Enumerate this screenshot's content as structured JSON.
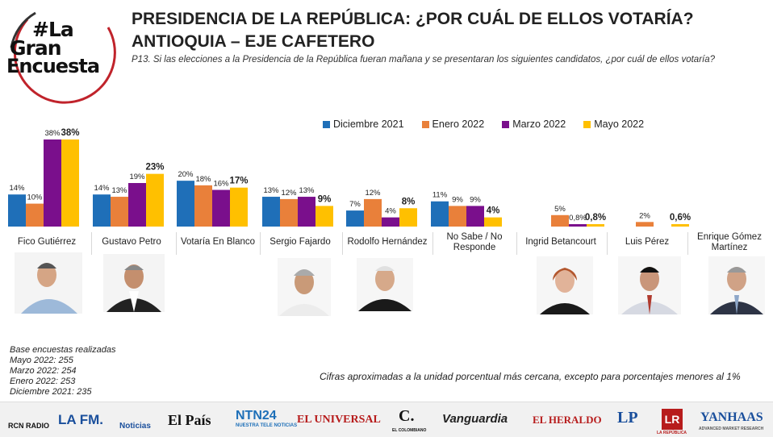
{
  "logo": {
    "line1": "#La",
    "line2": "Gran",
    "line3": "Encuesta"
  },
  "title_line1": "PRESIDENCIA DE LA REPÚBLICA: ¿POR CUÁL DE ELLOS VOTARÍA?",
  "title_line2": "ANTIOQUIA – EJE CAFETERO",
  "question": "P13. Si las elecciones a la Presidencia de la República fueran mañana y se presentaran los siguientes candidatos, ¿por cuál de ellos votaría?",
  "colors": {
    "dic": "#1F6FB8",
    "ene": "#E9803A",
    "mar": "#7A0F8C",
    "may": "#FFC000"
  },
  "chart_data": {
    "type": "bar",
    "categories": [
      "Fico Gutiérrez",
      "Gustavo Petro",
      "Votaría En Blanco",
      "Sergio Fajardo",
      "Rodolfo Hernández",
      "No Sabe / No Responde",
      "Ingrid Betancourt",
      "Luis Pérez",
      "Enrique Gómez Martínez"
    ],
    "series": [
      {
        "name": "Diciembre 2021",
        "values": [
          14,
          14,
          20,
          13,
          7,
          11,
          null,
          null,
          null
        ],
        "labels": [
          "14%",
          "14%",
          "20%",
          "13%",
          "7%",
          "11%",
          "",
          "",
          ""
        ]
      },
      {
        "name": "Enero 2022",
        "values": [
          10,
          13,
          18,
          12,
          12,
          9,
          5,
          2,
          null
        ],
        "labels": [
          "10%",
          "13%",
          "18%",
          "12%",
          "12%",
          "9%",
          "5%",
          "2%",
          ""
        ]
      },
      {
        "name": "Marzo 2022",
        "values": [
          38,
          19,
          16,
          13,
          4,
          9,
          0.8,
          null,
          null
        ],
        "labels": [
          "38%",
          "19%",
          "16%",
          "13%",
          "4%",
          "9%",
          "0,8%",
          "",
          ""
        ]
      },
      {
        "name": "Mayo 2022",
        "values": [
          38,
          23,
          17,
          9,
          8,
          4,
          0.8,
          0.6,
          null
        ],
        "labels": [
          "38%",
          "23%",
          "17%",
          "9%",
          "8%",
          "4%",
          "0,8%",
          "0,6%",
          ""
        ]
      }
    ],
    "ylim": [
      0,
      40
    ],
    "legend_position": "top-center"
  },
  "candidate_names": [
    "Fico Gutiérrez",
    "Gustavo Petro",
    "Votaría En Blanco",
    "Sergio Fajardo",
    "Rodolfo Hernández",
    "No Sabe / No",
    "Responde",
    "Ingrid Betancourt",
    "Luis Pérez",
    "Enrique Gómez",
    "Martínez"
  ],
  "base": {
    "title": "Base encuestas realizadas",
    "lines": [
      "Mayo 2022: 255",
      "Marzo 2022: 254",
      "Enero 2022: 253",
      "Diciembre 2021: 235"
    ]
  },
  "note": "Cifras aproximadas a la unidad porcentual más cercana, excepto para porcentajes menores al 1%",
  "footer_logos": [
    "RCN RADIO",
    "LA FM.",
    "Noticias",
    "El País",
    "NTN24",
    "NUESTRA TELE NOTICIAS",
    "EL UNIVERSAL",
    "C.",
    "EL COLOMBIANO",
    "Vanguardia",
    "EL HERALDO",
    "LP",
    "LR",
    "LA REPÚBLICA",
    "YANHAAS",
    "ADVANCED MARKET RESEARCH"
  ]
}
